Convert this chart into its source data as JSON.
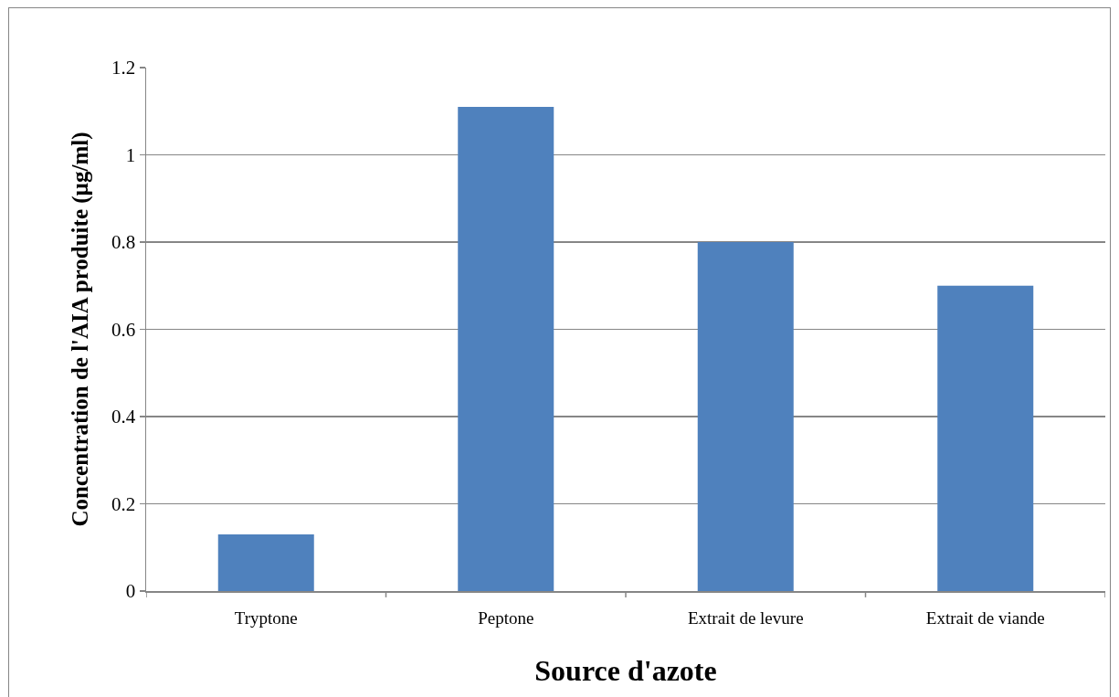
{
  "chart_data": {
    "type": "bar",
    "xlabel": "Source d'azote",
    "ylabel": "Concentration de l'AIA produite (µg/ml)",
    "categories": [
      "Tryptone",
      "Peptone",
      "Extrait de levure",
      "Extrait de viande"
    ],
    "values": [
      0.13,
      1.11,
      0.8,
      0.7
    ],
    "color": "#4f81bd",
    "ylim": [
      0,
      1.2
    ],
    "yticks": [
      0,
      0.2,
      0.4,
      0.6,
      0.8,
      1,
      1.2
    ],
    "grid": "y"
  }
}
